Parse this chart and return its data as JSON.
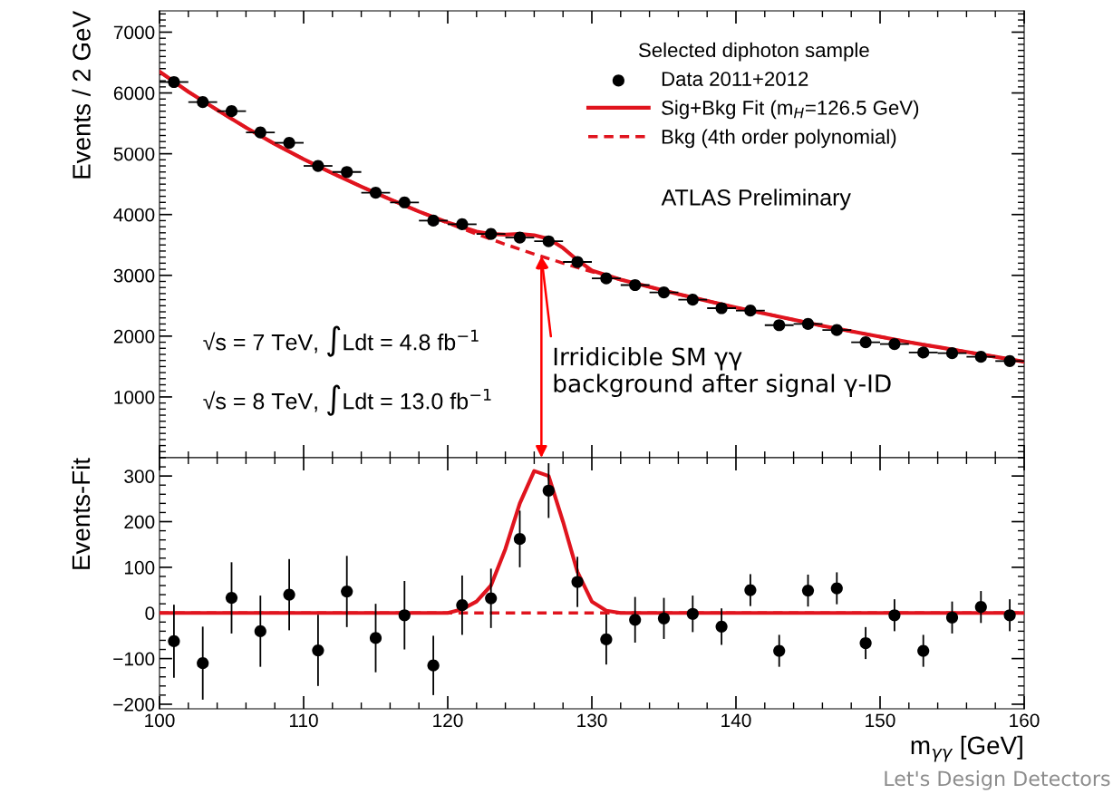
{
  "chart_data": [
    {
      "type": "scatter",
      "ylabel": "Events / 2 GeV",
      "legend_title": "Selected diphoton sample",
      "legend": "top right",
      "tick_labels": "y",
      "xlim": [
        100,
        160
      ],
      "xticks": [
        100,
        110,
        120,
        130,
        140,
        150,
        160
      ],
      "ylim": [
        0,
        7350
      ],
      "yticks": [
        1000,
        2000,
        3000,
        4000,
        5000,
        6000,
        7000
      ],
      "grid": false,
      "series": [
        {
          "name": "Data 2011+2012",
          "marker": "circle",
          "color": "#000000",
          "x": [
            101,
            103,
            105,
            107,
            109,
            111,
            113,
            115,
            117,
            119,
            121,
            123,
            125,
            127,
            129,
            131,
            133,
            135,
            137,
            139,
            141,
            143,
            145,
            147,
            149,
            151,
            153,
            155,
            157,
            159
          ],
          "values": [
            6180,
            5850,
            5700,
            5350,
            5180,
            4800,
            4700,
            4360,
            4200,
            3900,
            3840,
            3680,
            3620,
            3560,
            3220,
            2950,
            2840,
            2720,
            2600,
            2460,
            2420,
            2180,
            2200,
            2100,
            1900,
            1870,
            1730,
            1720,
            1660,
            1590
          ],
          "xerrors": [
            1,
            1,
            1,
            1,
            1,
            1,
            1,
            1,
            1,
            1,
            1,
            1,
            1,
            1,
            1,
            1,
            1,
            1,
            1,
            1,
            1,
            1,
            1,
            1,
            1,
            1,
            1,
            1,
            1,
            1
          ]
        },
        {
          "name": "Sig+Bkg Fit (m$_{H}$=126.5 GeV)",
          "type": "line",
          "line_style": "solid",
          "color": "#e0141e",
          "x": [
            100,
            102,
            104,
            106,
            108,
            110,
            112,
            114,
            116,
            118,
            120,
            122,
            123,
            124,
            125,
            126,
            127,
            128,
            129,
            130,
            132,
            134,
            136,
            138,
            140,
            142,
            144,
            146,
            148,
            150,
            152,
            154,
            156,
            158,
            160
          ],
          "values": [
            6350,
            6020,
            5720,
            5430,
            5160,
            4910,
            4680,
            4460,
            4250,
            4050,
            3870,
            3720,
            3680,
            3670,
            3680,
            3660,
            3600,
            3450,
            3250,
            3080,
            2930,
            2810,
            2690,
            2580,
            2470,
            2370,
            2270,
            2170,
            2080,
            1990,
            1900,
            1820,
            1740,
            1660,
            1580
          ]
        },
        {
          "name": "Bkg (4th order polynomial)",
          "type": "line",
          "line_style": "dashed",
          "color": "#e0141e",
          "x": [
            100,
            102,
            104,
            106,
            108,
            110,
            112,
            114,
            116,
            118,
            120,
            122,
            124,
            126,
            128,
            130,
            132,
            134,
            136,
            138,
            140,
            142,
            144,
            146,
            148,
            150,
            152,
            154,
            156,
            158,
            160
          ],
          "values": [
            6350,
            6020,
            5720,
            5430,
            5160,
            4910,
            4680,
            4460,
            4250,
            4050,
            3860,
            3680,
            3510,
            3350,
            3200,
            3060,
            2930,
            2810,
            2690,
            2580,
            2470,
            2370,
            2270,
            2170,
            2080,
            1990,
            1900,
            1820,
            1740,
            1660,
            1580
          ]
        }
      ],
      "annotations": [
        "ATLAS Preliminary",
        "√s = 7 TeV, ∫Ldt = 4.8 fb$^{−1}$",
        "√s = 8 TeV, ∫Ldt = 13.0 fb$^{−1}$",
        {
          "text": "Irridicible SM γγ\nbackground after signal γ-ID",
          "x": 126.5,
          "y": 3310
        }
      ]
    },
    {
      "type": "scatter",
      "ylabel": "Events-Fit",
      "xlabel": "m$_{γγ}$ [GeV]",
      "xlim": [
        100,
        160
      ],
      "xticks": [
        100,
        110,
        120,
        130,
        140,
        150,
        160
      ],
      "ylim": [
        -210,
        340
      ],
      "yticks": [
        -200,
        -100,
        0,
        100,
        200,
        300
      ],
      "grid": false,
      "series": [
        {
          "marker": "circle",
          "color": "#000000",
          "x": [
            101,
            103,
            105,
            107,
            109,
            111,
            113,
            115,
            117,
            119,
            121,
            123,
            125,
            127,
            129,
            131,
            133,
            135,
            137,
            139,
            141,
            143,
            145,
            147,
            149,
            151,
            153,
            155,
            157,
            159
          ],
          "values": [
            -62,
            -110,
            33,
            -40,
            40,
            -82,
            47,
            -55,
            -5,
            -115,
            17,
            32,
            162,
            268,
            68,
            -58,
            -15,
            -12,
            -2,
            -30,
            50,
            -83,
            49,
            54,
            -66,
            -5,
            -83,
            -10,
            13,
            -5
          ],
          "errors": [
            80,
            80,
            78,
            78,
            78,
            78,
            78,
            75,
            75,
            65,
            65,
            65,
            62,
            60,
            55,
            55,
            50,
            45,
            40,
            40,
            35,
            35,
            35,
            35,
            35,
            35,
            35,
            35,
            35,
            35
          ]
        },
        {
          "type": "line",
          "line_style": "dashed",
          "color": "#e0141e",
          "x": [
            100,
            160
          ],
          "values": [
            0,
            0
          ]
        },
        {
          "type": "line",
          "line_style": "solid",
          "color": "#e0141e",
          "x": [
            100,
            110,
            120,
            121,
            122,
            123,
            124,
            125,
            126,
            127,
            128,
            129,
            130,
            131,
            132,
            140,
            150,
            160
          ],
          "values": [
            0,
            0,
            0,
            8,
            25,
            60,
            140,
            240,
            311,
            300,
            200,
            90,
            25,
            5,
            0,
            0,
            0,
            0
          ]
        }
      ],
      "annotations": [
        "Let's Design Detectors"
      ]
    }
  ]
}
